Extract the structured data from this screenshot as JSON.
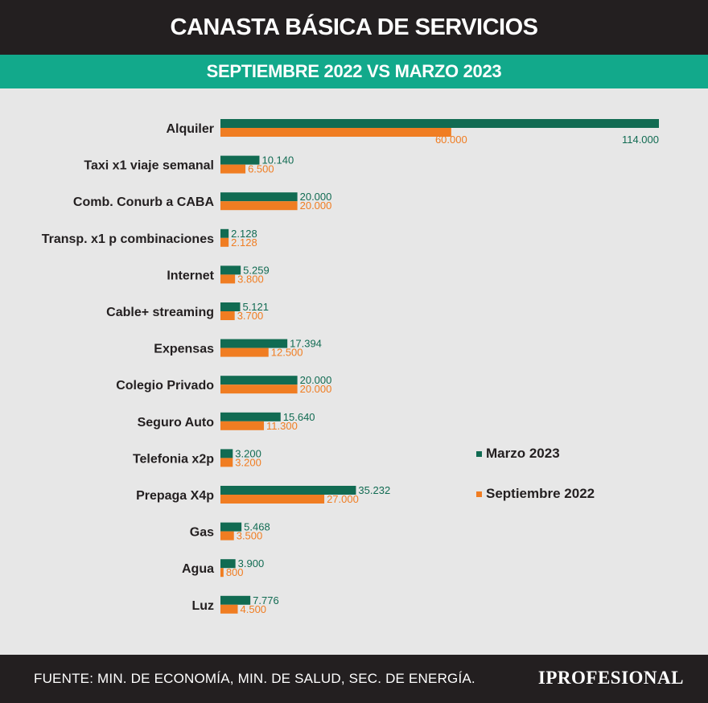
{
  "header": {
    "title": "CANASTA BÁSICA DE SERVICIOS",
    "subtitle": "SEPTIEMBRE 2022 VS MARZO 2023"
  },
  "footer": {
    "source": "FUENTE:  MIN. DE ECONOMÍA, MIN. DE SALUD, SEC. DE ENERGÍA.",
    "brand": "IPROFESIONAL"
  },
  "colors": {
    "marzo": "#116b52",
    "septiembre": "#f07d22",
    "title_bg": "#231f20",
    "subtitle_bg": "#12a98b",
    "background": "#e7e7e7"
  },
  "chart_data": {
    "type": "bar",
    "orientation": "horizontal",
    "categories": [
      "Alquiler",
      "Taxi x1 viaje semanal",
      "Comb. Conurb a CABA",
      "Transp. x1 p combinaciones",
      "Internet",
      "Cable+ streaming",
      "Expensas",
      "Colegio Privado",
      "Seguro Auto",
      "Telefonia x2p",
      "Prepaga X4p",
      "Gas",
      "Agua",
      "Luz"
    ],
    "series": [
      {
        "name": "Marzo 2023",
        "values": [
          114000,
          10140,
          20000,
          2128,
          5259,
          5121,
          17394,
          20000,
          15640,
          3200,
          35232,
          5468,
          3900,
          7776
        ],
        "labels": [
          "114.000",
          "10.140",
          "20.000",
          "2.128",
          "5.259",
          "5.121",
          "17.394",
          "20.000",
          "15.640",
          "3.200",
          "35.232",
          "5.468",
          "3.900",
          "7.776"
        ]
      },
      {
        "name": "Septiembre 2022",
        "values": [
          60000,
          6500,
          20000,
          2128,
          3800,
          3700,
          12500,
          20000,
          11300,
          3200,
          27000,
          3500,
          800,
          4500
        ],
        "labels": [
          "60.000",
          "6.500",
          "20.000",
          "2.128",
          "3.800",
          "3.700",
          "12.500",
          "20.000",
          "11.300",
          "3.200",
          "27.000",
          "3.500",
          "800",
          "4.500"
        ]
      }
    ],
    "xlim": [
      0,
      114000
    ],
    "legend": "right"
  }
}
